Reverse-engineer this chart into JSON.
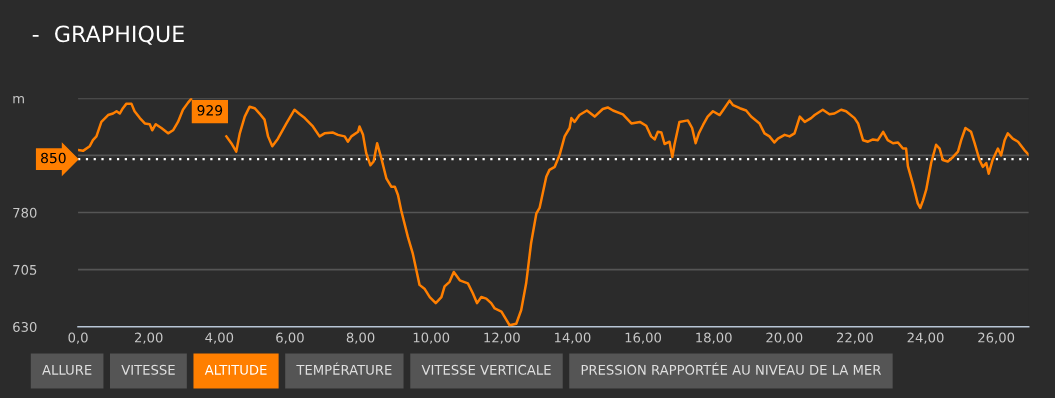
{
  "chart_data": {
    "type": "line",
    "title": "-  GRAPHIQUE",
    "x": [
      0.0,
      0.14,
      0.33,
      0.42,
      0.52,
      0.66,
      0.85,
      0.99,
      1.09,
      1.18,
      1.27,
      1.37,
      1.51,
      1.6,
      1.75,
      1.89,
      2.03,
      2.1,
      2.2,
      2.36,
      2.55,
      2.69,
      2.83,
      2.97,
      3.11,
      3.2,
      3.55,
      4.01,
      4.2,
      4.34,
      4.48,
      4.58,
      4.72,
      4.86,
      5.0,
      5.14,
      5.28,
      5.38,
      5.5,
      5.66,
      5.9,
      6.13,
      6.28,
      6.42,
      6.65,
      6.84,
      6.98,
      7.22,
      7.36,
      7.55,
      7.64,
      7.74,
      7.93,
      7.97,
      8.07,
      8.16,
      8.28,
      8.37,
      8.47,
      8.59,
      8.73,
      8.87,
      8.97,
      9.06,
      9.15,
      9.34,
      9.48,
      9.67,
      9.81,
      9.96,
      10.13,
      10.29,
      10.38,
      10.52,
      10.64,
      10.81,
      11.04,
      11.18,
      11.3,
      11.42,
      11.56,
      11.7,
      11.8,
      11.99,
      12.13,
      12.22,
      12.41,
      12.55,
      12.69,
      12.83,
      12.98,
      13.07,
      13.26,
      13.35,
      13.5,
      13.64,
      13.78,
      13.92,
      13.97,
      14.06,
      14.2,
      14.41,
      14.63,
      14.86,
      15.0,
      15.15,
      15.43,
      15.67,
      15.91,
      16.09,
      16.23,
      16.33,
      16.42,
      16.52,
      16.61,
      16.75,
      16.83,
      16.89,
      17.03,
      17.27,
      17.39,
      17.49,
      17.58,
      17.7,
      17.83,
      17.98,
      18.17,
      18.26,
      18.45,
      18.55,
      18.74,
      18.92,
      19.06,
      19.3,
      19.44,
      19.58,
      19.72,
      19.82,
      20.01,
      20.15,
      20.29,
      20.44,
      20.58,
      20.76,
      20.86,
      21.09,
      21.28,
      21.42,
      21.61,
      21.75,
      21.99,
      22.09,
      22.23,
      22.37,
      22.51,
      22.65,
      22.8,
      22.93,
      23.08,
      23.22,
      23.36,
      23.45,
      23.5,
      23.64,
      23.78,
      23.85,
      23.93,
      24.02,
      24.16,
      24.3,
      24.4,
      24.49,
      24.63,
      24.78,
      24.92,
      25.01,
      25.13,
      25.29,
      25.39,
      25.53,
      25.62,
      25.72,
      25.79,
      25.9,
      26.05,
      26.14,
      26.24,
      26.33,
      26.47,
      26.62,
      26.8,
      26.92
    ],
    "series": [
      {
        "color": "#ff7f00",
        "values": [
          862,
          861,
          867,
          875,
          880,
          899,
          908,
          910,
          913,
          910,
          917,
          923,
          923,
          913,
          904,
          897,
          896,
          888,
          896,
          891,
          884,
          888,
          899,
          915,
          924,
          929,
          null,
          null,
          880,
          871,
          860,
          884,
          906,
          919,
          917,
          910,
          902,
          880,
          867,
          877,
          897,
          915,
          909,
          904,
          893,
          880,
          884,
          885,
          882,
          880,
          873,
          880,
          886,
          893,
          882,
          858,
          842,
          847,
          871,
          851,
          825,
          814,
          814,
          803,
          783,
          748,
          726,
          685,
          680,
          669,
          661,
          669,
          683,
          689,
          702,
          691,
          687,
          674,
          661,
          669,
          667,
          661,
          654,
          650,
          639,
          632,
          634,
          652,
          687,
          740,
          779,
          786,
          827,
          836,
          840,
          856,
          880,
          891,
          904,
          899,
          908,
          914,
          906,
          916,
          918,
          914,
          909,
          897,
          899,
          894,
          880,
          876,
          886,
          885,
          870,
          873,
          853,
          869,
          899,
          901,
          891,
          871,
          884,
          895,
          906,
          913,
          908,
          914,
          927,
          921,
          917,
          914,
          906,
          897,
          884,
          880,
          872,
          877,
          882,
          880,
          884,
          906,
          899,
          904,
          908,
          915,
          909,
          910,
          915,
          913,
          904,
          897,
          875,
          873,
          876,
          875,
          886,
          875,
          871,
          872,
          864,
          864,
          841,
          818,
          792,
          786,
          796,
          810,
          845,
          869,
          864,
          849,
          847,
          853,
          860,
          875,
          891,
          886,
          871,
          849,
          840,
          845,
          831,
          849,
          864,
          855,
          875,
          884,
          877,
          873,
          862,
          856
        ]
      }
    ],
    "xlim": [
      0,
      26.92
    ],
    "xticks": [
      {
        "value": 0,
        "label": "0,0"
      },
      {
        "value": 2,
        "label": "2,00"
      },
      {
        "value": 4,
        "label": "4,00"
      },
      {
        "value": 6,
        "label": "6,00"
      },
      {
        "value": 8,
        "label": "8,00"
      },
      {
        "value": 10,
        "label": "10,00"
      },
      {
        "value": 12,
        "label": "12,00"
      },
      {
        "value": 14,
        "label": "14,00"
      },
      {
        "value": 16,
        "label": "16,00"
      },
      {
        "value": 18,
        "label": "18,00"
      },
      {
        "value": 20,
        "label": "20,00"
      },
      {
        "value": 22,
        "label": "22,00"
      },
      {
        "value": 24,
        "label": "24,00"
      },
      {
        "value": 26,
        "label": "26,00"
      }
    ],
    "ylim": [
      630,
      930
    ],
    "yticks": [
      630,
      705,
      780,
      {
        "value": 855,
        "label": null
      },
      {
        "value": 930,
        "label": "m"
      }
    ],
    "grid": "y",
    "legend": false,
    "marker": "none",
    "line_style": "solid",
    "ref_lines": [
      {
        "axis": "y",
        "value": 850,
        "label": "850",
        "color": "#ffffff",
        "line_style": "dotted"
      }
    ],
    "annotations": [
      {
        "text": "929",
        "x": 3.2,
        "y": 929
      },
      "ALLURE",
      "VITESSE",
      "ALTITUDE",
      "TEMPÉRATURE",
      "VITESSE VERTICALE",
      "PRESSION RAPPORTÉE AU NIVEAU DE LA MER"
    ]
  }
}
